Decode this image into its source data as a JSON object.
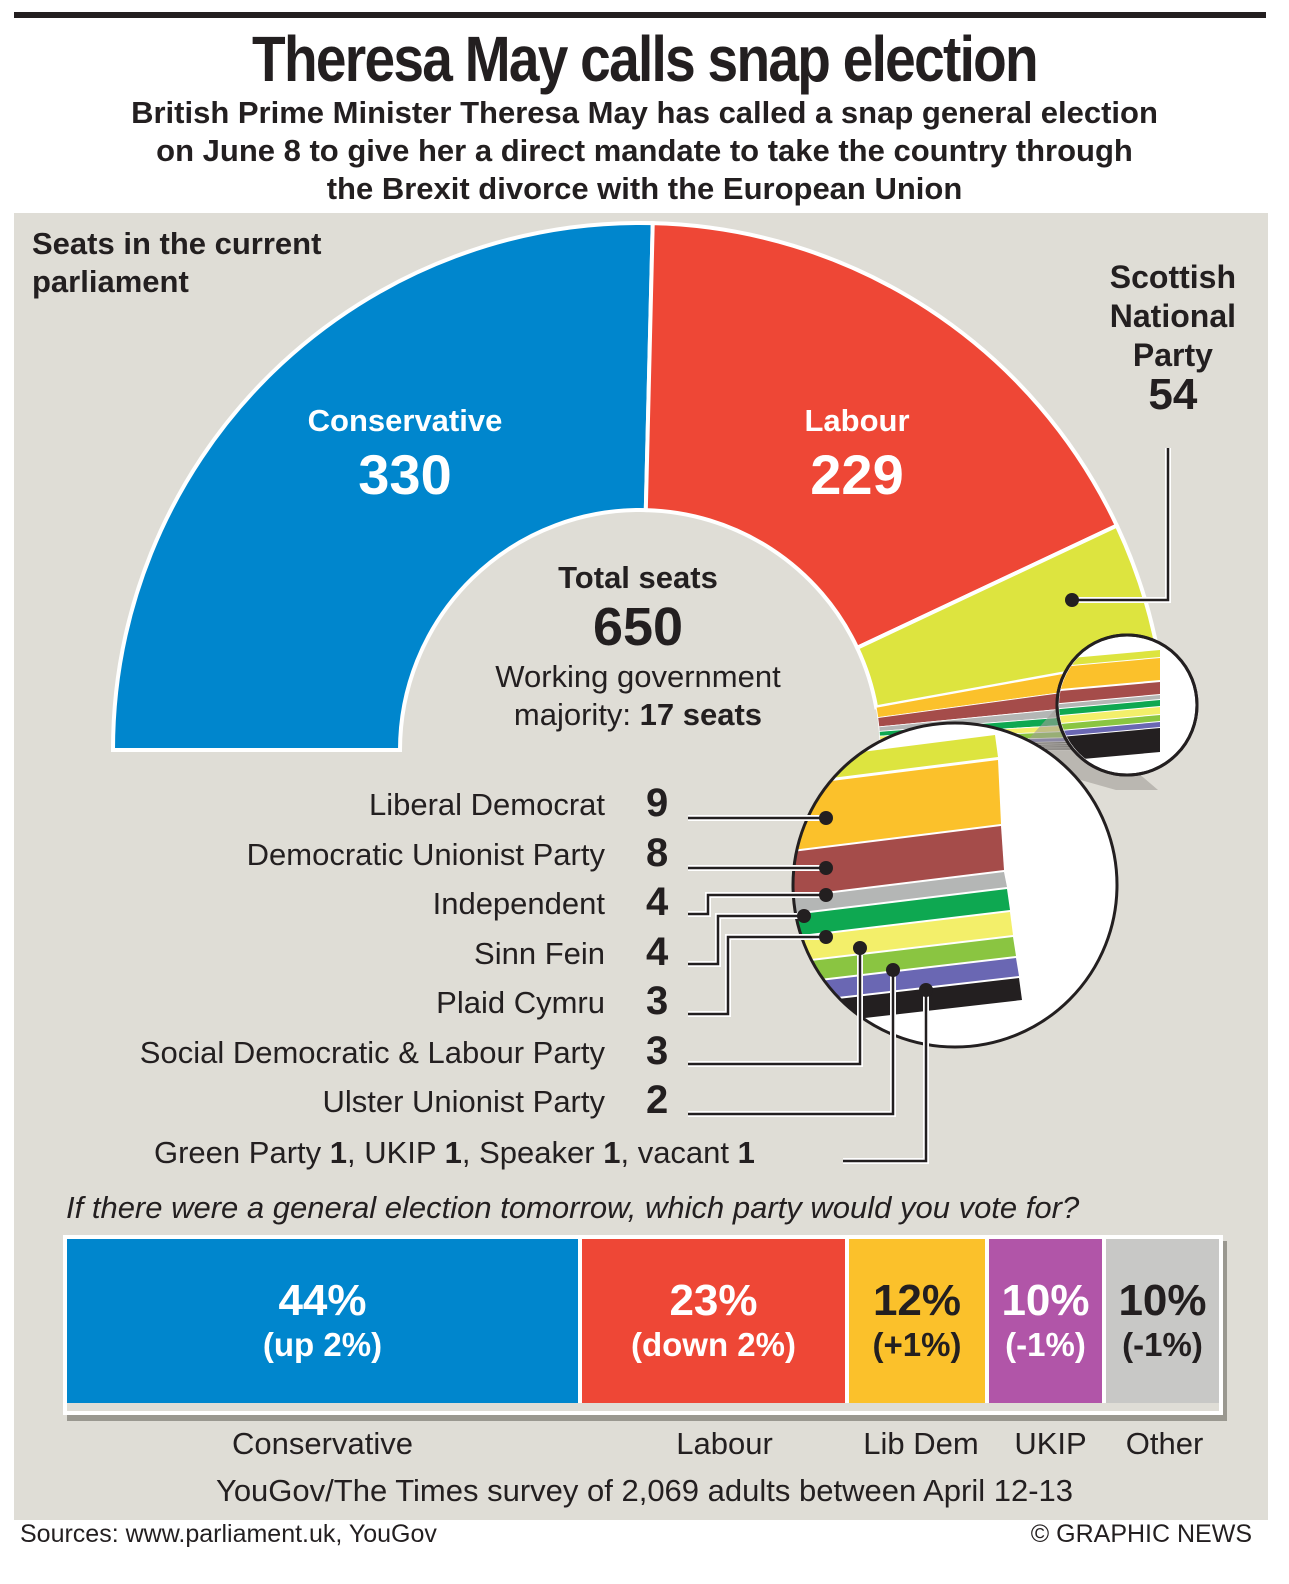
{
  "header": {
    "title": "Theresa May calls snap election",
    "subtitle_lines": [
      "British Prime Minister Theresa May has called a snap general election",
      "on June 8 to give her a direct mandate to take the country through",
      "the Brexit divorce with the European Union"
    ]
  },
  "seats": {
    "heading_lines": [
      "Seats in the current",
      "parliament"
    ],
    "total_label": "Total seats",
    "total_value": "650",
    "majority_line1": "Working government",
    "majority_prefix": "majority: ",
    "majority_value": "17 seats",
    "conservative": {
      "label": "Conservative",
      "value": "330"
    },
    "labour": {
      "label": "Labour",
      "value": "229"
    },
    "snp": {
      "label_lines": [
        "Scottish",
        "National",
        "Party"
      ],
      "value": "54"
    },
    "small_parties": [
      {
        "name": "Liberal Democrat",
        "value": "9"
      },
      {
        "name": "Democratic Unionist Party",
        "value": "8"
      },
      {
        "name": "Independent",
        "value": "4"
      },
      {
        "name": "Sinn Fein",
        "value": "4"
      },
      {
        "name": "Plaid Cymru",
        "value": "3"
      },
      {
        "name": "Social Democratic & Labour Party",
        "value": "3"
      },
      {
        "name": "Ulster Unionist Party",
        "value": "2"
      }
    ],
    "minor": [
      {
        "name": "Green Party ",
        "value": "1"
      },
      {
        "name": "UKIP ",
        "value": "1"
      },
      {
        "name": "Speaker ",
        "value": "1"
      },
      {
        "name": "vacant ",
        "value": "1"
      }
    ]
  },
  "poll": {
    "question": "If there were a general election tomorrow, which party would you vote for?",
    "survey_note": "YouGov/The Times survey of 2,069 adults between April 12-13"
  },
  "footer": {
    "sources": "Sources: www.parliament.uk, YouGov",
    "credit": "© GRAPHIC NEWS"
  },
  "colors": {
    "conservative": "#0086cd",
    "labour": "#ee4736",
    "snp": "#dde43f",
    "lib_dem": "#fbc12b",
    "dup": "#a54c4a",
    "independent": "#b4b6b5",
    "sinn_fein": "#0ea851",
    "plaid_cymru": "#f3ef6a",
    "sdlp": "#8ac541",
    "uup": "#6a67b3",
    "others": "#231f20",
    "ukip": "#b155a8",
    "other": "#c8c8c6",
    "panel": "#dfddd6"
  },
  "chart_data": [
    {
      "type": "pie",
      "title": "Seats in the current parliament",
      "categories": [
        "Conservative",
        "Labour",
        "Scottish National Party",
        "Liberal Democrat",
        "Democratic Unionist Party",
        "Independent",
        "Sinn Fein",
        "Plaid Cymru",
        "Social Democratic & Labour Party",
        "Ulster Unionist Party",
        "Green Party",
        "UKIP",
        "Speaker",
        "vacant"
      ],
      "values": [
        330,
        229,
        54,
        9,
        8,
        4,
        4,
        3,
        3,
        2,
        1,
        1,
        1,
        1
      ],
      "total": 650
    },
    {
      "type": "bar",
      "title": "If there were a general election tomorrow, which party would you vote for?",
      "categories": [
        "Conservative",
        "Labour",
        "Lib Dem",
        "UKIP",
        "Other"
      ],
      "values": [
        44,
        23,
        12,
        10,
        10
      ],
      "value_labels": [
        "44%",
        "23%",
        "12%",
        "10%",
        "10%"
      ],
      "changes": [
        "(up 2%)",
        "(down 2%)",
        "(+1%)",
        "(-1%)",
        "(-1%)"
      ]
    }
  ]
}
